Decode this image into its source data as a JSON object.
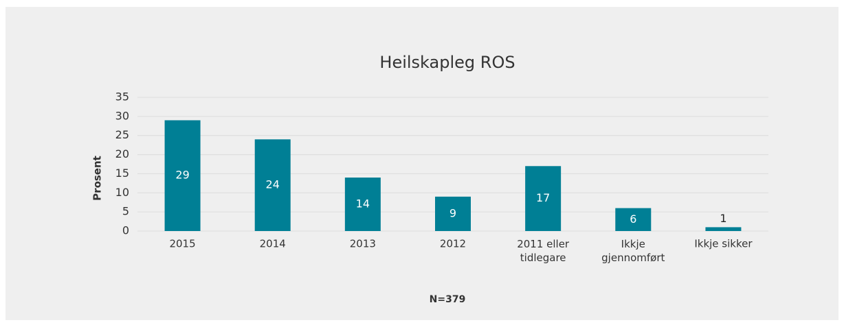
{
  "chart_data": {
    "type": "bar",
    "title": "Heilskapleg ROS",
    "y_label": "Prosent",
    "categories": [
      "2015",
      "2014",
      "2013",
      "2012",
      "2011 eller tidlegare",
      "Ikkje gjennomført",
      "Ikkje sikker"
    ],
    "values": [
      29,
      24,
      14,
      9,
      17,
      6,
      1
    ],
    "color": "#007f95",
    "ylim": [
      0,
      35
    ],
    "yticks": [
      0,
      5,
      10,
      15,
      20,
      25,
      30,
      35
    ],
    "grid": true,
    "annotation": "N=379"
  }
}
